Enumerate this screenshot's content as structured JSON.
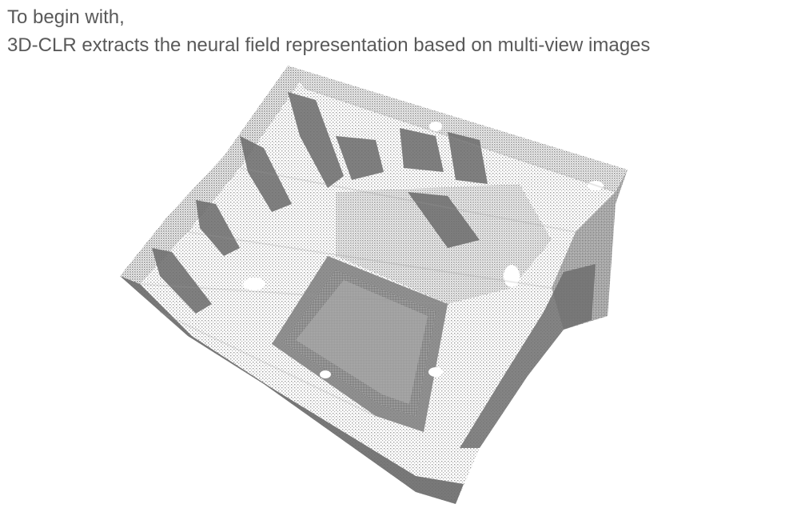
{
  "caption": {
    "line1": "To begin with,",
    "line2": "3D-CLR extracts the neural field representation based on multi-view images"
  },
  "figure": {
    "subject": "point-cloud-room-reconstruction",
    "point_color": "#7a7a7a",
    "highlight_color": "#ffffff",
    "background_color": "#ffffff"
  }
}
